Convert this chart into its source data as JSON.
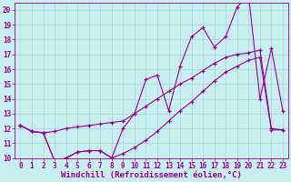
{
  "background_color": "#c8eef0",
  "grid_color": "#a0d8d8",
  "line_color": "#990099",
  "xlabel": "Windchill (Refroidissement éolien,°C)",
  "xlabel_fontsize": 6.5,
  "tick_fontsize": 5.5,
  "xlim": [
    -0.5,
    23.5
  ],
  "ylim": [
    10,
    20.5
  ],
  "yticks": [
    10,
    11,
    12,
    13,
    14,
    15,
    16,
    17,
    18,
    19,
    20
  ],
  "xticks": [
    0,
    1,
    2,
    3,
    4,
    5,
    6,
    7,
    8,
    9,
    10,
    11,
    12,
    13,
    14,
    15,
    16,
    17,
    18,
    19,
    20,
    21,
    22,
    23
  ],
  "series1_x": [
    0,
    1,
    2,
    3,
    4,
    5,
    6,
    7,
    8,
    9,
    10,
    11,
    12,
    13,
    14,
    15,
    16,
    17,
    18,
    19,
    20,
    21,
    22,
    23
  ],
  "series1_y": [
    12.2,
    11.8,
    11.7,
    11.8,
    12.0,
    12.1,
    12.2,
    12.3,
    12.4,
    12.5,
    13.0,
    13.5,
    14.0,
    14.5,
    15.0,
    15.4,
    15.9,
    16.4,
    16.8,
    17.0,
    17.1,
    17.3,
    12.0,
    11.9
  ],
  "series2_x": [
    0,
    1,
    2,
    3,
    4,
    5,
    6,
    7,
    8,
    9,
    10,
    11,
    12,
    13,
    14,
    15,
    16,
    17,
    18,
    19,
    20,
    21,
    22,
    23
  ],
  "series2_y": [
    12.2,
    11.8,
    11.7,
    9.8,
    10.0,
    10.4,
    10.5,
    10.5,
    10.0,
    12.0,
    13.0,
    15.3,
    15.6,
    13.2,
    16.2,
    18.2,
    18.8,
    17.5,
    18.2,
    20.2,
    21.0,
    14.0,
    17.4,
    13.2
  ],
  "series3_x": [
    0,
    1,
    2,
    3,
    4,
    5,
    6,
    7,
    8,
    9,
    10,
    11,
    12,
    13,
    14,
    15,
    16,
    17,
    18,
    19,
    20,
    21,
    22,
    23
  ],
  "series3_y": [
    12.2,
    11.8,
    11.7,
    9.8,
    10.0,
    10.4,
    10.5,
    10.5,
    10.0,
    10.3,
    10.7,
    11.2,
    11.8,
    12.5,
    13.2,
    13.8,
    14.5,
    15.2,
    15.8,
    16.2,
    16.6,
    16.8,
    11.9,
    11.9
  ]
}
